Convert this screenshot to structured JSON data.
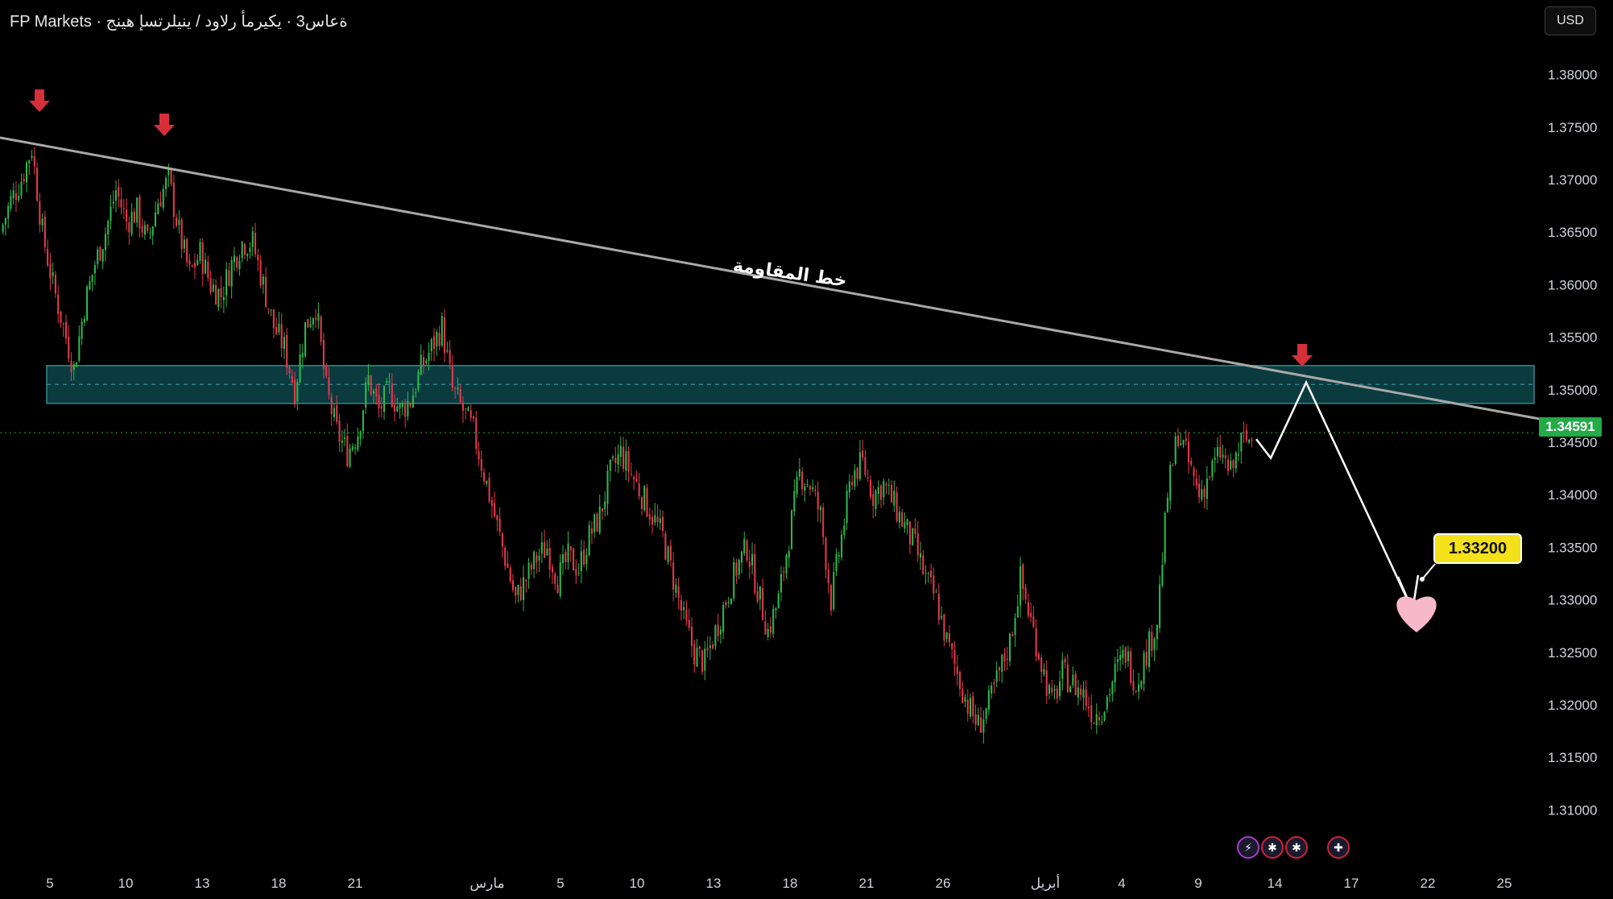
{
  "header": {
    "title": "FP Markets · ةعاس3 · يكيرمأ رلاود / ينيلرتسإ هينج"
  },
  "currency_button": "USD",
  "current_price_label": "1.34591",
  "target_label": "1.33200",
  "resistance_label": "خط المقاومة",
  "colors": {
    "bull": "#26a69a",
    "bull_candle": "#2eb84d",
    "bear_candle": "#e5394c",
    "zone_fill": "#0b3b3f",
    "zone_border": "#2d8a8f",
    "trendline": "#a8a8a8",
    "arrow": "#d62f3a",
    "price_tag": "#22ab46",
    "target_tag": "#f5e11a",
    "heart": "#f8b8cc"
  },
  "event_icons": [
    "lightning-icon",
    "us-flag-icon",
    "us-flag-icon",
    "uk-flag-icon"
  ],
  "chart_data": {
    "type": "candlestick",
    "y_ticks": [
      "1.38000",
      "1.37500",
      "1.37000",
      "1.36500",
      "1.36000",
      "1.35500",
      "1.35000",
      "1.34500",
      "1.34000",
      "1.33500",
      "1.33000",
      "1.32500",
      "1.32000",
      "1.31500",
      "1.31000"
    ],
    "ylim": [
      1.3085,
      1.3825
    ],
    "x_ticks": [
      "5",
      "10",
      "13",
      "18",
      "21",
      "مارس",
      "5",
      "10",
      "13",
      "18",
      "21",
      "26",
      "أبريل",
      "4",
      "9",
      "14",
      "17",
      "22",
      "25"
    ],
    "resistance_zone": [
      1.3487,
      1.3523
    ],
    "resistance_zone_mid": 1.3505,
    "trendline": {
      "start": 1.374,
      "end": 1.3462
    },
    "current_price": 1.34591,
    "target": 1.332,
    "projection": [
      1.3453,
      1.3435,
      1.3507,
      1.329
    ],
    "close_path": [
      1.365,
      1.368,
      1.37,
      1.373,
      1.365,
      1.36,
      1.356,
      1.352,
      1.358,
      1.362,
      1.365,
      1.369,
      1.366,
      1.367,
      1.364,
      1.368,
      1.37,
      1.365,
      1.361,
      1.363,
      1.36,
      1.359,
      1.362,
      1.364,
      1.364,
      1.36,
      1.356,
      1.354,
      1.35,
      1.356,
      1.358,
      1.35,
      1.346,
      1.344,
      1.346,
      1.351,
      1.348,
      1.35,
      1.348,
      1.349,
      1.352,
      1.354,
      1.356,
      1.35,
      1.348,
      1.346,
      1.342,
      1.338,
      1.334,
      1.33,
      1.332,
      1.334,
      1.335,
      1.332,
      1.334,
      1.333,
      1.336,
      1.338,
      1.342,
      1.344,
      1.342,
      1.34,
      1.338,
      1.336,
      1.332,
      1.328,
      1.325,
      1.324,
      1.327,
      1.33,
      1.333,
      1.335,
      1.331,
      1.327,
      1.33,
      1.336,
      1.342,
      1.341,
      1.338,
      1.33,
      1.336,
      1.342,
      1.343,
      1.34,
      1.341,
      1.339,
      1.337,
      1.335,
      1.332,
      1.33,
      1.326,
      1.323,
      1.32,
      1.318,
      1.32,
      1.323,
      1.326,
      1.332,
      1.328,
      1.324,
      1.32,
      1.323,
      1.322,
      1.321,
      1.319,
      1.32,
      1.323,
      1.325,
      1.322,
      1.325,
      1.328,
      1.34,
      1.346,
      1.343,
      1.34,
      1.342,
      1.344,
      1.342,
      1.345,
      1.3453
    ],
    "start_index_label": "5",
    "grid": false,
    "legend": "none"
  }
}
